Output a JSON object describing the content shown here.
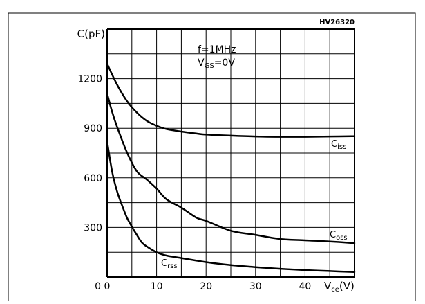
{
  "figure_code": "HV26320",
  "colors": {
    "line": "#000000",
    "grid": "#000000",
    "background": "#ffffff"
  },
  "chart_data": {
    "type": "line",
    "title": "",
    "xlabel": "V",
    "xlabel_sub": "ce",
    "xlabel_unit": "(V)",
    "ylabel": "C(pF)",
    "xlim": [
      0,
      50
    ],
    "ylim": [
      0,
      1500
    ],
    "x_ticks": [
      {
        "value": 0,
        "label": "0"
      },
      {
        "value": 10,
        "label": "10"
      },
      {
        "value": 20,
        "label": "20"
      },
      {
        "value": 30,
        "label": "30"
      },
      {
        "value": 40,
        "label": "40"
      }
    ],
    "y_ticks": [
      {
        "value": 300,
        "label": "300"
      },
      {
        "value": 600,
        "label": "600"
      },
      {
        "value": 900,
        "label": "900"
      },
      {
        "value": 1200,
        "label": "1200"
      }
    ],
    "x_grid": [
      0,
      5,
      10,
      15,
      20,
      25,
      30,
      35,
      40,
      45,
      50
    ],
    "y_grid": [
      0,
      150,
      300,
      450,
      600,
      750,
      900,
      1050,
      1200,
      1350,
      1500
    ],
    "grid": true,
    "annotations": [
      "f=1MHz",
      "V",
      "GS",
      "=0V"
    ],
    "series": [
      {
        "name": "C",
        "name_sub": "iss",
        "x": [
          0,
          2,
          4,
          6,
          8,
          10,
          12,
          15,
          18,
          20,
          25,
          30,
          35,
          40,
          45,
          50
        ],
        "y": [
          1290,
          1165,
          1065,
          995,
          945,
          915,
          895,
          880,
          868,
          862,
          855,
          850,
          848,
          848,
          850,
          852
        ]
      },
      {
        "name": "C",
        "name_sub": "oss",
        "x": [
          0,
          1,
          2,
          4,
          6,
          8,
          10,
          12,
          15,
          18,
          20,
          25,
          30,
          35,
          40,
          45,
          50
        ],
        "y": [
          1110,
          1000,
          910,
          755,
          640,
          590,
          535,
          470,
          420,
          360,
          340,
          280,
          255,
          230,
          222,
          215,
          205
        ]
      },
      {
        "name": "C",
        "name_sub": "rss",
        "x": [
          0,
          1,
          2,
          3,
          4,
          5,
          6,
          7,
          8,
          10,
          12,
          15,
          20,
          25,
          30,
          35,
          40,
          45,
          50
        ],
        "y": [
          820,
          640,
          520,
          435,
          360,
          305,
          255,
          210,
          185,
          150,
          130,
          115,
          90,
          72,
          60,
          50,
          42,
          36,
          30
        ]
      }
    ]
  }
}
